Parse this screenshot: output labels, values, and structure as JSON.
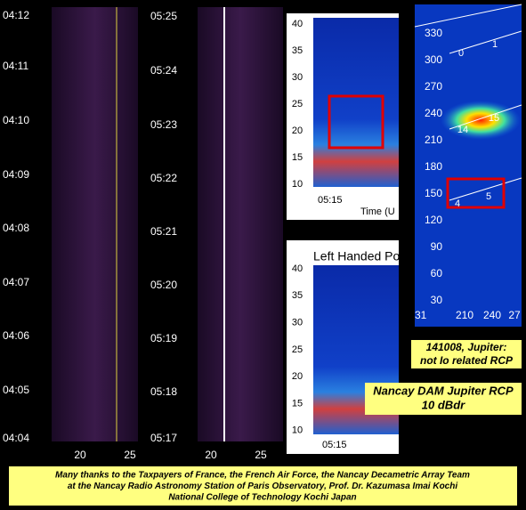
{
  "panels": [
    {
      "y_labels": [
        "04:12",
        "04:11",
        "04:10",
        "04:09",
        "04:08",
        "04:07",
        "04:06",
        "04:05",
        "04:04"
      ],
      "x_labels": [
        "20",
        "25"
      ]
    },
    {
      "y_labels": [
        "05:25",
        "05:24",
        "05:23",
        "05:22",
        "05:21",
        "05:20",
        "05:19",
        "05:18",
        "05:17"
      ],
      "x_labels": [
        "20",
        "25"
      ]
    }
  ],
  "spectrogram": {
    "top": {
      "y_labels": [
        "40",
        "35",
        "30",
        "25",
        "20",
        "15",
        "10"
      ],
      "time": "05:15",
      "axis_label": "Time (U"
    },
    "title": "Left Handed Po",
    "bottom": {
      "y_labels": [
        "40",
        "35",
        "30",
        "25",
        "20",
        "15",
        "10"
      ],
      "time": "05:15"
    }
  },
  "map": {
    "y_labels": [
      "330",
      "300",
      "270",
      "240",
      "210",
      "180",
      "150",
      "120",
      "90",
      "60",
      "30"
    ],
    "x_labels": [
      "210",
      "240",
      "27"
    ],
    "partial_label": "31",
    "points": [
      "0",
      "1",
      "14",
      "15",
      "4",
      "5"
    ]
  },
  "captions": {
    "event": [
      "141008, Jupiter:",
      "not Io related RCP"
    ],
    "instrument": [
      "Nancay DAM Jupiter RCP",
      "10 dBdr"
    ],
    "credits": [
      "Many thanks to the Taxpayers of France, the French Air Force, the Nancay Decametric Array Team",
      "at the Nancay Radio Astronomy Station of Paris Observatory, Prof. Dr. Kazumasa Imai Kochi",
      "National College of Technology Kochi Japan"
    ]
  }
}
